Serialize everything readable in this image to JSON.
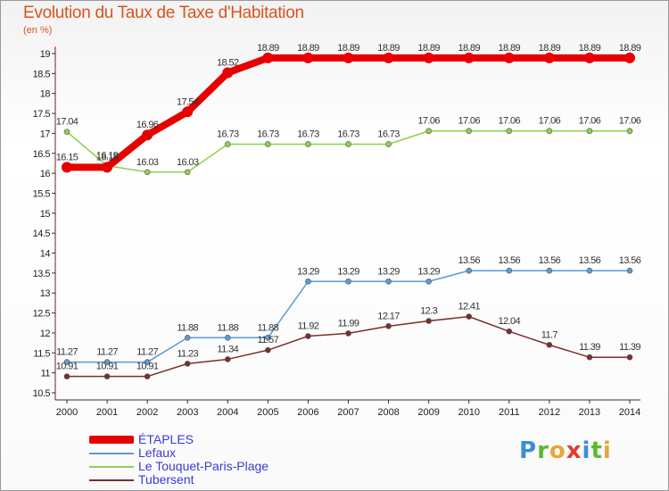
{
  "header": {
    "title": "Evolution du Taux de Taxe d'Habitation",
    "subtitle": "(en %)"
  },
  "logo": {
    "letters": [
      "P",
      "r",
      "o",
      "x",
      "i",
      "t",
      "i"
    ],
    "colors": [
      "#3b8ed8",
      "#5cb82e",
      "#e8a43c",
      "#e03c2e",
      "#3b8ed8",
      "#5cb82e",
      "#e8a43c"
    ]
  },
  "chart_data": {
    "type": "line",
    "title": "Evolution du Taux de Taxe d'Habitation",
    "ylabel": "(en %)",
    "xlabel": "",
    "ylim": [
      10.5,
      19
    ],
    "grid": false,
    "legend_position": "bottom-left",
    "x": [
      "2000",
      "2001",
      "2002",
      "2003",
      "2004",
      "2005",
      "2006",
      "2007",
      "2008",
      "2009",
      "2010",
      "2011",
      "2012",
      "2013",
      "2014"
    ],
    "yticks": [
      "10.5",
      "11",
      "11.5",
      "12",
      "12.5",
      "13",
      "13.5",
      "14",
      "14.5",
      "15",
      "15.5",
      "16",
      "16.5",
      "17",
      "17.5",
      "18",
      "18.5",
      "19"
    ],
    "series": [
      {
        "name": "ÉTAPLES",
        "color": "#e60000",
        "values": [
          16.15,
          16.15,
          16.96,
          17.54,
          18.52,
          18.89,
          18.89,
          18.89,
          18.89,
          18.89,
          18.89,
          18.89,
          18.89,
          18.89,
          18.89
        ],
        "labels": [
          "16.15",
          "16.15",
          "16.96",
          "17.54",
          "18.52",
          "18.89",
          "18.89",
          "18.89",
          "18.89",
          "18.89",
          "18.89",
          "18.89",
          "18.89",
          "18.89",
          "18.89"
        ]
      },
      {
        "name": "Lefaux",
        "color": "#5b9bd5",
        "values": [
          11.27,
          11.27,
          11.27,
          11.88,
          11.88,
          11.88,
          13.29,
          13.29,
          13.29,
          13.29,
          13.56,
          13.56,
          13.56,
          13.56,
          13.56
        ],
        "labels": [
          "11.27",
          "11.27",
          "11.27",
          "11.88",
          "11.88",
          "11.88",
          "13.29",
          "13.29",
          "13.29",
          "13.29",
          "13.56",
          "13.56",
          "13.56",
          "13.56",
          "13.56"
        ]
      },
      {
        "name": "Le Touquet-Paris-Plage",
        "color": "#8fd14f",
        "values": [
          17.04,
          16.19,
          16.03,
          16.03,
          16.73,
          16.73,
          16.73,
          16.73,
          16.73,
          17.06,
          17.06,
          17.06,
          17.06,
          17.06,
          17.06
        ],
        "labels": [
          "17.04",
          "16.19",
          "16.03",
          "16.03",
          "16.73",
          "16.73",
          "16.73",
          "16.73",
          "16.73",
          "17.06",
          "17.06",
          "17.06",
          "17.06",
          "17.06",
          "17.06"
        ]
      },
      {
        "name": "Tubersent",
        "color": "#7b2e2e",
        "values": [
          10.91,
          10.91,
          10.91,
          11.23,
          11.34,
          11.57,
          11.92,
          11.99,
          12.17,
          12.3,
          12.41,
          12.04,
          11.7,
          11.39,
          11.39
        ],
        "labels": [
          "10.91",
          "10.91",
          "10.91",
          "11.23",
          "11.34",
          "11.57",
          "11.92",
          "11.99",
          "12.17",
          "12.3",
          "12.41",
          "12.04",
          "11.7",
          "11.39",
          "11.39"
        ]
      }
    ]
  }
}
